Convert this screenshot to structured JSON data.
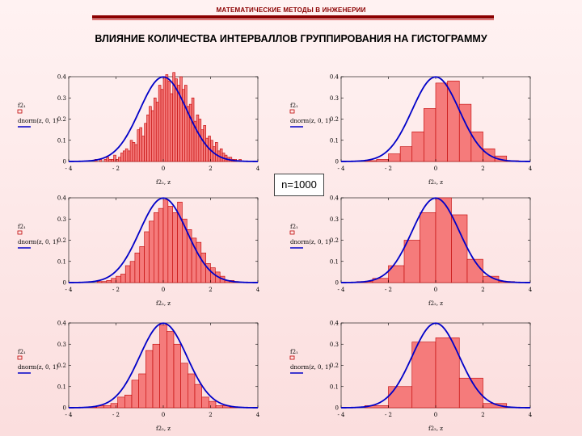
{
  "header": "МАТЕМАТИЧЕСКИЕ МЕТОДЫ В ИНЖЕНЕРИИ",
  "title": "ВЛИЯНИЕ КОЛИЧЕСТВА ИНТЕРВАЛЛОВ ГРУППИРОВАНИЯ НА ГИСТОГРАММУ",
  "sample_label": "n=1000",
  "colors": {
    "bar_fill": "#f57b7b",
    "bar_stroke": "#c00000",
    "curve": "#0000c8"
  },
  "chart_data": [
    {
      "type": "bar",
      "bins": 80,
      "bin_width": 0.1,
      "x_range": [
        -4,
        4
      ],
      "ylim": [
        0,
        0.4
      ],
      "xticks": [
        "- 4",
        "- 2",
        "0",
        "2",
        "4"
      ],
      "yticks": [
        "0",
        "0.1",
        "0.2",
        "0.3",
        "0.4"
      ],
      "xlabel": "f2₂, z",
      "legend": [
        "f2₁",
        "dnorm(z, 0, 1)"
      ],
      "curve": "dnorm(z, 0, 1)",
      "values": [
        0,
        0,
        0,
        0,
        0,
        0,
        0,
        0,
        0,
        0,
        0,
        0.01,
        0,
        0.01,
        0,
        0.01,
        0.02,
        0.01,
        0.01,
        0.03,
        0.01,
        0.02,
        0.04,
        0.05,
        0.06,
        0.05,
        0.1,
        0.09,
        0.08,
        0.15,
        0.16,
        0.12,
        0.18,
        0.22,
        0.26,
        0.24,
        0.3,
        0.28,
        0.36,
        0.34,
        0.4,
        0.41,
        0.38,
        0.32,
        0.42,
        0.39,
        0.36,
        0.4,
        0.34,
        0.36,
        0.26,
        0.27,
        0.3,
        0.19,
        0.22,
        0.2,
        0.15,
        0.17,
        0.11,
        0.12,
        0.1,
        0.07,
        0.09,
        0.05,
        0.06,
        0.04,
        0.03,
        0.02,
        0.02,
        0.01,
        0.01,
        0,
        0.01,
        0,
        0,
        0,
        0,
        0,
        0,
        0
      ]
    },
    {
      "type": "bar",
      "bins": 16,
      "bin_width": 0.5,
      "x_range": [
        -4,
        4
      ],
      "ylim": [
        0,
        0.4
      ],
      "xticks": [
        "- 4",
        "- 2",
        "0",
        "2",
        "4"
      ],
      "yticks": [
        "0",
        "0.1",
        "0.2",
        "0.3",
        "0.4"
      ],
      "xlabel": "f2₂, z",
      "legend": [
        "f2₁",
        "dnorm(z, 0, 1)"
      ],
      "curve": "dnorm(z, 0, 1)",
      "values": [
        0,
        0,
        0.004,
        0.01,
        0.036,
        0.07,
        0.14,
        0.25,
        0.37,
        0.38,
        0.27,
        0.14,
        0.06,
        0.026,
        0.004,
        0
      ]
    },
    {
      "type": "bar",
      "bins": 40,
      "bin_width": 0.2,
      "x_range": [
        -4,
        4
      ],
      "ylim": [
        0,
        0.4
      ],
      "xticks": [
        "- 4",
        "- 2",
        "0",
        "2",
        "4"
      ],
      "yticks": [
        "0",
        "0.1",
        "0.2",
        "0.3",
        "0.4"
      ],
      "xlabel": "f2₂, z",
      "legend": [
        "f2₁",
        "dnorm(z, 0, 1)"
      ],
      "curve": "dnorm(z, 0, 1)",
      "values": [
        0,
        0,
        0,
        0,
        0,
        0,
        0.005,
        0.005,
        0.01,
        0.02,
        0.03,
        0.04,
        0.08,
        0.1,
        0.14,
        0.17,
        0.24,
        0.29,
        0.33,
        0.35,
        0.39,
        0.36,
        0.33,
        0.38,
        0.3,
        0.25,
        0.21,
        0.19,
        0.14,
        0.09,
        0.07,
        0.05,
        0.03,
        0.01,
        0.01,
        0.005,
        0,
        0,
        0,
        0
      ]
    },
    {
      "type": "bar",
      "bins": 12,
      "bin_width": 0.667,
      "x_range": [
        -4,
        4
      ],
      "ylim": [
        0,
        0.4
      ],
      "xticks": [
        "- 4",
        "- 2",
        "0",
        "2",
        "4"
      ],
      "yticks": [
        "0",
        "0.1",
        "0.2",
        "0.3",
        "0.4"
      ],
      "xlabel": "f2₂, z",
      "legend": [
        "f2₁",
        "dnorm(z, 0, 1)"
      ],
      "curve": "dnorm(z, 0, 1)",
      "values": [
        0,
        0.005,
        0.02,
        0.08,
        0.2,
        0.33,
        0.4,
        0.32,
        0.11,
        0.03,
        0.005,
        0
      ]
    },
    {
      "type": "bar",
      "bins": 27,
      "bin_width": 0.3,
      "x_range": [
        -4,
        4
      ],
      "ylim": [
        0,
        0.4
      ],
      "xticks": [
        "- 4",
        "- 2",
        "0",
        "2",
        "4"
      ],
      "yticks": [
        "0",
        "0.1",
        "0.2",
        "0.3",
        "0.4"
      ],
      "xlabel": "f2₂, z",
      "legend": [
        "f2₁",
        "dnorm(z, 0, 1)"
      ],
      "curve": "dnorm(z, 0, 1)",
      "values": [
        0,
        0,
        0,
        0.003,
        0.01,
        0.01,
        0.02,
        0.05,
        0.06,
        0.13,
        0.16,
        0.27,
        0.3,
        0.39,
        0.36,
        0.3,
        0.21,
        0.16,
        0.11,
        0.05,
        0.03,
        0.01,
        0.01,
        0.003,
        0,
        0,
        0
      ]
    },
    {
      "type": "bar",
      "bins": 8,
      "bin_width": 1.0,
      "x_range": [
        -4,
        4
      ],
      "ylim": [
        0,
        0.4
      ],
      "xticks": [
        "- 4",
        "- 2",
        "0",
        "2",
        "4"
      ],
      "yticks": [
        "0",
        "0.1",
        "0.2",
        "0.3",
        "0.4"
      ],
      "xlabel": "f2₂, z",
      "legend": [
        "f2₁",
        "dnorm(z, 0, 1)"
      ],
      "curve": "dnorm(z, 0, 1)",
      "values": [
        0,
        0.01,
        0.1,
        0.31,
        0.33,
        0.14,
        0.02,
        0
      ]
    }
  ]
}
